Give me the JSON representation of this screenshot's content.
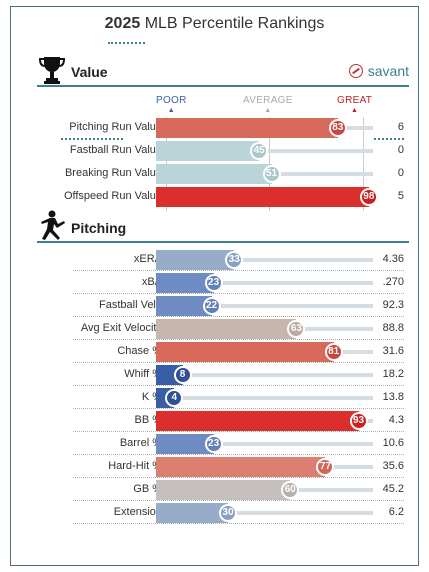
{
  "header": {
    "year": "2025",
    "title": "MLB Percentile Rankings"
  },
  "value_section": {
    "label": "Value",
    "icon": "trophy-icon",
    "brand": "savant"
  },
  "scale": {
    "poor": "POOR",
    "average": "AVERAGE",
    "great": "GREAT",
    "poor_color": "#3a5ea6",
    "average_color": "#aaaaaa",
    "great_color": "#c02020"
  },
  "value_rows": [
    {
      "label": "Pitching Run Value",
      "percentile": 83,
      "value": "6",
      "color": "#d86a5c",
      "badge": "#c9463f"
    },
    {
      "label": "Fastball Run Value",
      "percentile": 45,
      "value": "0",
      "color": "#b9d5d8",
      "badge": "#a9c8cc"
    },
    {
      "label": "Breaking Run Value",
      "percentile": 51,
      "value": "0",
      "color": "#b9d5d8",
      "badge": "#a9c8cc"
    },
    {
      "label": "Offspeed Run Value",
      "percentile": 98,
      "value": "5",
      "color": "#dd2e2e",
      "badge": "#cc1f1f"
    }
  ],
  "pitching_section": {
    "label": "Pitching",
    "icon": "pitcher-icon"
  },
  "pitching_rows": [
    {
      "label": "xERA",
      "percentile": 33,
      "value": "4.36",
      "color": "#97acc9",
      "badge": "#8aa0c2"
    },
    {
      "label": "xBA",
      "percentile": 23,
      "value": ".270",
      "color": "#6f8bc3",
      "badge": "#6280ba"
    },
    {
      "label": "Fastball Velo",
      "percentile": 22,
      "value": "92.3",
      "color": "#6f8bc3",
      "badge": "#6280ba"
    },
    {
      "label": "Avg Exit Velocity",
      "percentile": 63,
      "value": "88.8",
      "color": "#c7b6ae",
      "badge": "#bca99f"
    },
    {
      "label": "Chase %",
      "percentile": 81,
      "value": "31.6",
      "color": "#d86a5c",
      "badge": "#c9463f"
    },
    {
      "label": "Whiff %",
      "percentile": 8,
      "value": "18.2",
      "color": "#3a5ea6",
      "badge": "#2f4f96"
    },
    {
      "label": "K %",
      "percentile": 4,
      "value": "13.8",
      "color": "#3a5ea6",
      "badge": "#2f4f96"
    },
    {
      "label": "BB %",
      "percentile": 93,
      "value": "4.3",
      "color": "#dd2e2e",
      "badge": "#cc1f1f"
    },
    {
      "label": "Barrel %",
      "percentile": 23,
      "value": "10.6",
      "color": "#6f8bc3",
      "badge": "#6280ba"
    },
    {
      "label": "Hard-Hit %",
      "percentile": 77,
      "value": "35.6",
      "color": "#dc7e72",
      "badge": "#d0665a"
    },
    {
      "label": "GB %",
      "percentile": 60,
      "value": "45.2",
      "color": "#c5c0bd",
      "badge": "#b7b1ad"
    },
    {
      "label": "Extension",
      "percentile": 30,
      "value": "6.2",
      "color": "#97acc9",
      "badge": "#8aa0c2"
    }
  ]
}
